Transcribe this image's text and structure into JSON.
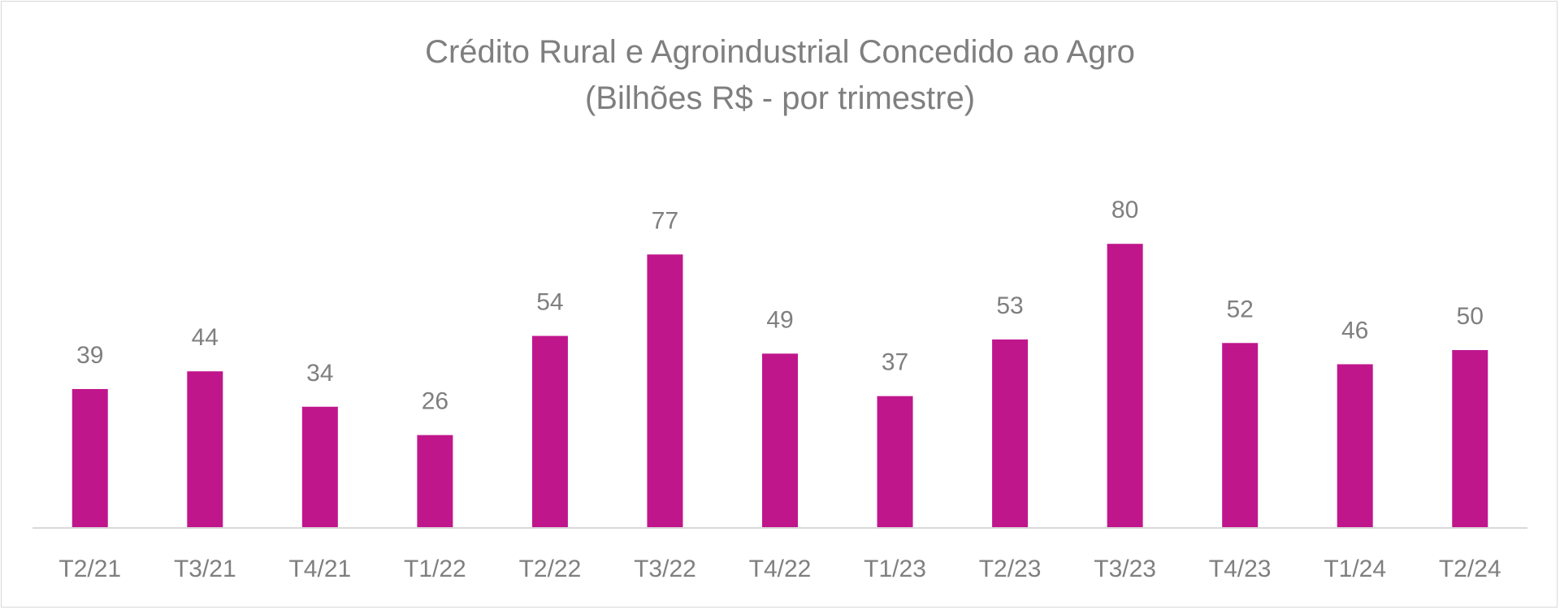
{
  "chart_data": {
    "type": "bar",
    "title": "Crédito Rural e Agroindustrial Concedido ao Agro",
    "subtitle": "(Bilhões R$ - por trimestre)",
    "categories": [
      "T2/21",
      "T3/21",
      "T4/21",
      "T1/22",
      "T2/22",
      "T3/22",
      "T4/22",
      "T1/23",
      "T2/23",
      "T3/23",
      "T4/23",
      "T1/24",
      "T2/24"
    ],
    "values": [
      39,
      44,
      34,
      26,
      54,
      77,
      49,
      37,
      53,
      80,
      52,
      46,
      50
    ],
    "data_labels": [
      "39",
      "44",
      "34",
      "26",
      "54",
      "77",
      "49",
      "37",
      "53",
      "80",
      "52",
      "46",
      "50"
    ],
    "bar_color": "#C0168C",
    "xlabel": "",
    "ylabel": "",
    "ylim": [
      0,
      100
    ],
    "grid": false,
    "legend": "none"
  }
}
